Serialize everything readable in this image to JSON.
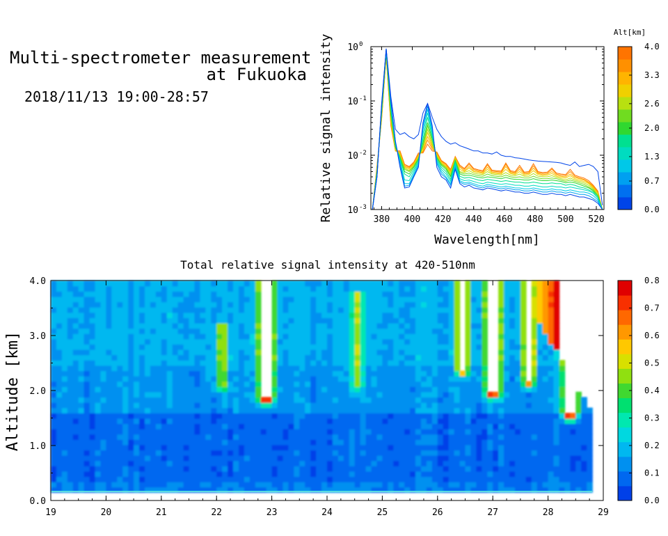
{
  "header": {
    "title_line1": "Multi-spectrometer measurement",
    "title_line2": "at Fukuoka",
    "datetime": "2018/11/13 19:00-28:57"
  },
  "chart_data": [
    {
      "type": "line",
      "xlabel": "Wavelength[nm]",
      "ylabel": "Relative signal intensity",
      "x_scale": "linear",
      "y_scale": "log",
      "xlim": [
        373,
        525
      ],
      "ylim": [
        0.001,
        1
      ],
      "xticks": [
        "380",
        "400",
        "420",
        "440",
        "460",
        "480",
        "500",
        "520"
      ],
      "yticks": [
        "10",
        "10",
        "10",
        "10"
      ],
      "ytick_exponents": [
        "-3",
        "-2",
        "-1",
        "0"
      ],
      "colorbar": {
        "title": "Alt[km]",
        "ticks": [
          "4.0",
          "3.3",
          "2.6",
          "2.0",
          "1.3",
          "0.7",
          "0.0"
        ],
        "range": [
          0,
          4
        ],
        "colors": [
          "#0044e8",
          "#0070f0",
          "#00a0f0",
          "#00c8e8",
          "#00dcc0",
          "#00e090",
          "#30d830",
          "#70dc20",
          "#b8e010",
          "#f0d000",
          "#ffb400",
          "#ff9000",
          "#ff7400"
        ]
      },
      "x": [
        374,
        377,
        380,
        383,
        386,
        389,
        392,
        395,
        398,
        401,
        404,
        407,
        410,
        413,
        416,
        419,
        422,
        425,
        428,
        431,
        434,
        437,
        440,
        443,
        446,
        449,
        452,
        455,
        458,
        461,
        464,
        467,
        470,
        473,
        476,
        479,
        482,
        485,
        488,
        491,
        494,
        497,
        500,
        503,
        506,
        509,
        512,
        515,
        518,
        521,
        524
      ],
      "series": [
        {
          "alt": 0.1,
          "values": [
            0.001,
            0.004,
            0.09,
            0.92,
            0.12,
            0.03,
            0.024,
            0.026,
            0.022,
            0.02,
            0.024,
            0.06,
            0.09,
            0.05,
            0.03,
            0.022,
            0.018,
            0.016,
            0.017,
            0.015,
            0.014,
            0.013,
            0.012,
            0.012,
            0.011,
            0.011,
            0.0105,
            0.0115,
            0.01,
            0.0095,
            0.0095,
            0.009,
            0.0088,
            0.0085,
            0.0082,
            0.008,
            0.0078,
            0.0077,
            0.0076,
            0.0075,
            0.0074,
            0.0072,
            0.0068,
            0.0065,
            0.0075,
            0.0062,
            0.0065,
            0.0068,
            0.0062,
            0.005,
            0.0012
          ]
        },
        {
          "alt": 0.3,
          "values": [
            0.001,
            0.004,
            0.08,
            0.9,
            0.1,
            0.018,
            0.006,
            0.0025,
            0.0026,
            0.004,
            0.006,
            0.04,
            0.09,
            0.035,
            0.006,
            0.004,
            0.0035,
            0.0025,
            0.0055,
            0.003,
            0.0026,
            0.0028,
            0.0025,
            0.0024,
            0.0023,
            0.0025,
            0.0024,
            0.0023,
            0.0022,
            0.0023,
            0.0022,
            0.0021,
            0.0021,
            0.002,
            0.002,
            0.0021,
            0.002,
            0.0019,
            0.0019,
            0.002,
            0.0019,
            0.0019,
            0.0018,
            0.0019,
            0.0018,
            0.0017,
            0.0017,
            0.0016,
            0.0015,
            0.0013,
            0.001
          ]
        },
        {
          "alt": 0.7,
          "values": [
            0.001,
            0.004,
            0.08,
            0.9,
            0.1,
            0.018,
            0.007,
            0.0027,
            0.0028,
            0.0042,
            0.0065,
            0.035,
            0.08,
            0.03,
            0.007,
            0.0045,
            0.0038,
            0.0028,
            0.006,
            0.0032,
            0.0029,
            0.003,
            0.0028,
            0.0026,
            0.0025,
            0.0027,
            0.0026,
            0.0025,
            0.0024,
            0.0025,
            0.0024,
            0.0023,
            0.0023,
            0.0022,
            0.0022,
            0.0023,
            0.0022,
            0.0021,
            0.0021,
            0.0022,
            0.0021,
            0.0021,
            0.002,
            0.0021,
            0.002,
            0.0019,
            0.0019,
            0.0018,
            0.0016,
            0.0014,
            0.001
          ]
        },
        {
          "alt": 1.0,
          "values": [
            0.001,
            0.0045,
            0.08,
            0.88,
            0.09,
            0.017,
            0.0075,
            0.003,
            0.003,
            0.0045,
            0.007,
            0.03,
            0.07,
            0.028,
            0.0075,
            0.005,
            0.004,
            0.003,
            0.0065,
            0.0034,
            0.0031,
            0.0032,
            0.003,
            0.0028,
            0.0027,
            0.0029,
            0.0028,
            0.0027,
            0.0026,
            0.0027,
            0.0026,
            0.0025,
            0.0025,
            0.0024,
            0.0024,
            0.0025,
            0.0024,
            0.0023,
            0.0023,
            0.0024,
            0.0023,
            0.0023,
            0.0022,
            0.0023,
            0.0022,
            0.0021,
            0.0021,
            0.002,
            0.0018,
            0.0015,
            0.001
          ]
        },
        {
          "alt": 1.3,
          "values": [
            0.001,
            0.0045,
            0.07,
            0.85,
            0.08,
            0.016,
            0.008,
            0.0035,
            0.0034,
            0.005,
            0.0075,
            0.025,
            0.06,
            0.025,
            0.008,
            0.0055,
            0.0045,
            0.0033,
            0.007,
            0.0037,
            0.0034,
            0.0035,
            0.0033,
            0.0031,
            0.003,
            0.0032,
            0.0031,
            0.003,
            0.0029,
            0.003,
            0.0029,
            0.0028,
            0.0028,
            0.0027,
            0.0027,
            0.0028,
            0.0027,
            0.0026,
            0.0026,
            0.0027,
            0.0026,
            0.0026,
            0.0025,
            0.0026,
            0.0025,
            0.0024,
            0.0023,
            0.0022,
            0.002,
            0.0016,
            0.001
          ]
        },
        {
          "alt": 1.6,
          "values": [
            0.001,
            0.005,
            0.07,
            0.82,
            0.07,
            0.015,
            0.0085,
            0.0045,
            0.004,
            0.0055,
            0.008,
            0.02,
            0.05,
            0.022,
            0.0085,
            0.006,
            0.005,
            0.0036,
            0.0075,
            0.0041,
            0.0038,
            0.0039,
            0.0037,
            0.0035,
            0.0034,
            0.0036,
            0.0035,
            0.0034,
            0.0033,
            0.0034,
            0.0033,
            0.0032,
            0.0032,
            0.0031,
            0.0031,
            0.0032,
            0.0031,
            0.003,
            0.003,
            0.0031,
            0.003,
            0.003,
            0.0028,
            0.0029,
            0.0028,
            0.0026,
            0.0025,
            0.0023,
            0.0021,
            0.0017,
            0.001
          ]
        },
        {
          "alt": 2.0,
          "values": [
            0.001,
            0.005,
            0.06,
            0.8,
            0.06,
            0.014,
            0.009,
            0.005,
            0.0045,
            0.006,
            0.0085,
            0.017,
            0.04,
            0.02,
            0.009,
            0.0065,
            0.0055,
            0.004,
            0.008,
            0.0045,
            0.0042,
            0.0043,
            0.0041,
            0.0039,
            0.0038,
            0.004,
            0.0039,
            0.0038,
            0.0037,
            0.0039,
            0.0037,
            0.0036,
            0.0036,
            0.0035,
            0.0035,
            0.0037,
            0.0035,
            0.0034,
            0.0034,
            0.0035,
            0.0034,
            0.0033,
            0.0031,
            0.0032,
            0.0031,
            0.0029,
            0.0027,
            0.0025,
            0.0022,
            0.0018,
            0.001
          ]
        },
        {
          "alt": 2.3,
          "values": [
            0.001,
            0.005,
            0.06,
            0.78,
            0.055,
            0.014,
            0.0095,
            0.0055,
            0.005,
            0.0062,
            0.0088,
            0.015,
            0.035,
            0.018,
            0.0092,
            0.0068,
            0.0058,
            0.0042,
            0.0082,
            0.0048,
            0.0045,
            0.0047,
            0.0044,
            0.0042,
            0.0041,
            0.0045,
            0.0042,
            0.0041,
            0.004,
            0.0043,
            0.004,
            0.0039,
            0.004,
            0.0038,
            0.0038,
            0.0041,
            0.0038,
            0.0037,
            0.0037,
            0.0038,
            0.0037,
            0.0035,
            0.0033,
            0.0035,
            0.0033,
            0.0031,
            0.0029,
            0.0026,
            0.0023,
            0.0018,
            0.001
          ]
        },
        {
          "alt": 2.6,
          "values": [
            0.001,
            0.0055,
            0.055,
            0.75,
            0.05,
            0.013,
            0.01,
            0.0058,
            0.0052,
            0.0065,
            0.009,
            0.014,
            0.03,
            0.016,
            0.0095,
            0.007,
            0.006,
            0.0045,
            0.0085,
            0.005,
            0.0048,
            0.0052,
            0.0047,
            0.0045,
            0.0044,
            0.005,
            0.0045,
            0.0044,
            0.0043,
            0.0048,
            0.0043,
            0.0042,
            0.0045,
            0.0041,
            0.0041,
            0.0046,
            0.0041,
            0.004,
            0.004,
            0.0042,
            0.0039,
            0.0037,
            0.0035,
            0.0038,
            0.0035,
            0.0033,
            0.0031,
            0.0028,
            0.0024,
            0.0019,
            0.001
          ]
        },
        {
          "alt": 3.0,
          "values": [
            0.001,
            0.0055,
            0.05,
            0.72,
            0.045,
            0.013,
            0.0105,
            0.006,
            0.0055,
            0.0068,
            0.0095,
            0.013,
            0.026,
            0.015,
            0.01,
            0.0072,
            0.0062,
            0.0048,
            0.0088,
            0.0055,
            0.005,
            0.0058,
            0.005,
            0.0048,
            0.0046,
            0.0055,
            0.0047,
            0.0046,
            0.0045,
            0.0055,
            0.0046,
            0.0044,
            0.005,
            0.0043,
            0.0044,
            0.0052,
            0.0044,
            0.0042,
            0.0043,
            0.0046,
            0.0041,
            0.0039,
            0.0038,
            0.0042,
            0.0037,
            0.0035,
            0.0033,
            0.003,
            0.0025,
            0.002,
            0.001
          ]
        },
        {
          "alt": 3.3,
          "values": [
            0.001,
            0.006,
            0.05,
            0.7,
            0.04,
            0.012,
            0.011,
            0.0062,
            0.0058,
            0.007,
            0.01,
            0.012,
            0.022,
            0.014,
            0.0105,
            0.0075,
            0.0065,
            0.005,
            0.009,
            0.006,
            0.0052,
            0.0062,
            0.0052,
            0.005,
            0.0048,
            0.006,
            0.0049,
            0.0048,
            0.0047,
            0.0062,
            0.0048,
            0.0046,
            0.0055,
            0.0045,
            0.0046,
            0.0058,
            0.0046,
            0.0044,
            0.0045,
            0.005,
            0.0043,
            0.0041,
            0.004,
            0.0045,
            0.0039,
            0.0037,
            0.0035,
            0.0031,
            0.0026,
            0.002,
            0.001
          ]
        },
        {
          "alt": 3.6,
          "values": [
            0.001,
            0.006,
            0.045,
            0.68,
            0.038,
            0.012,
            0.0115,
            0.0065,
            0.006,
            0.0072,
            0.0105,
            0.0115,
            0.019,
            0.013,
            0.011,
            0.0078,
            0.0068,
            0.0052,
            0.0092,
            0.0063,
            0.0055,
            0.0068,
            0.0055,
            0.0052,
            0.005,
            0.0066,
            0.0051,
            0.005,
            0.0049,
            0.0068,
            0.005,
            0.0048,
            0.006,
            0.0047,
            0.0048,
            0.0064,
            0.0048,
            0.0046,
            0.0047,
            0.0055,
            0.0045,
            0.0043,
            0.0042,
            0.005,
            0.0041,
            0.0038,
            0.0036,
            0.0032,
            0.0027,
            0.0021,
            0.001
          ]
        },
        {
          "alt": 3.9,
          "values": [
            0.001,
            0.0065,
            0.045,
            0.65,
            0.035,
            0.012,
            0.012,
            0.0068,
            0.0062,
            0.0075,
            0.011,
            0.011,
            0.016,
            0.012,
            0.0115,
            0.008,
            0.007,
            0.0055,
            0.0095,
            0.0066,
            0.0057,
            0.0072,
            0.0057,
            0.0054,
            0.0052,
            0.007,
            0.0053,
            0.0052,
            0.0051,
            0.0072,
            0.0052,
            0.005,
            0.0065,
            0.0049,
            0.005,
            0.007,
            0.005,
            0.0048,
            0.0049,
            0.0058,
            0.0047,
            0.0045,
            0.0044,
            0.0055,
            0.0043,
            0.004,
            0.0038,
            0.0034,
            0.0028,
            0.0022,
            0.001
          ]
        }
      ]
    },
    {
      "type": "heatmap",
      "title": "Total relative signal intensity at 420-510nm",
      "xlabel": "",
      "ylabel": "Altitude [km]",
      "xlim": [
        19,
        29
      ],
      "ylim": [
        0,
        4
      ],
      "xticks": [
        "19",
        "20",
        "21",
        "22",
        "23",
        "24",
        "25",
        "26",
        "27",
        "28",
        "29"
      ],
      "yticks": [
        "0.0",
        "1.0",
        "2.0",
        "3.0",
        "4.0"
      ],
      "data_x_range": [
        19.0,
        28.8
      ],
      "data_y_range": [
        0.15,
        4.0
      ],
      "background_value": 0.1,
      "colorbar": {
        "ticks": [
          "0.8",
          "0.7",
          "0.6",
          "0.5",
          "0.4",
          "0.3",
          "0.2",
          "0.1",
          "0.0"
        ],
        "range": [
          0,
          0.8
        ],
        "colors": [
          "#0040e8",
          "#0068f0",
          "#0090f0",
          "#00b8f0",
          "#00d8e0",
          "#00e8b0",
          "#00e070",
          "#40d830",
          "#90e010",
          "#d8e000",
          "#ffc800",
          "#ff9800",
          "#ff6800",
          "#f83000",
          "#e00000"
        ]
      },
      "features": [
        {
          "time": 22.1,
          "alt_from": 2.1,
          "alt_to": 3.2,
          "peak": 0.35
        },
        {
          "time": 22.9,
          "alt_from": 1.9,
          "alt_to": 4.0,
          "peak": 1.0
        },
        {
          "time": 24.55,
          "alt_from": 2.1,
          "alt_to": 3.8,
          "peak": 0.3
        },
        {
          "time": 26.45,
          "alt_from": 2.4,
          "alt_to": 4.0,
          "peak": 0.75
        },
        {
          "time": 27.0,
          "alt_from": 2.0,
          "alt_to": 4.0,
          "peak": 1.0
        },
        {
          "time": 27.65,
          "alt_from": 2.2,
          "alt_to": 4.0,
          "peak": 0.8
        },
        {
          "time": 28.4,
          "alt_from": 1.6,
          "alt_to": 4.0,
          "peak": 1.0
        }
      ]
    }
  ]
}
